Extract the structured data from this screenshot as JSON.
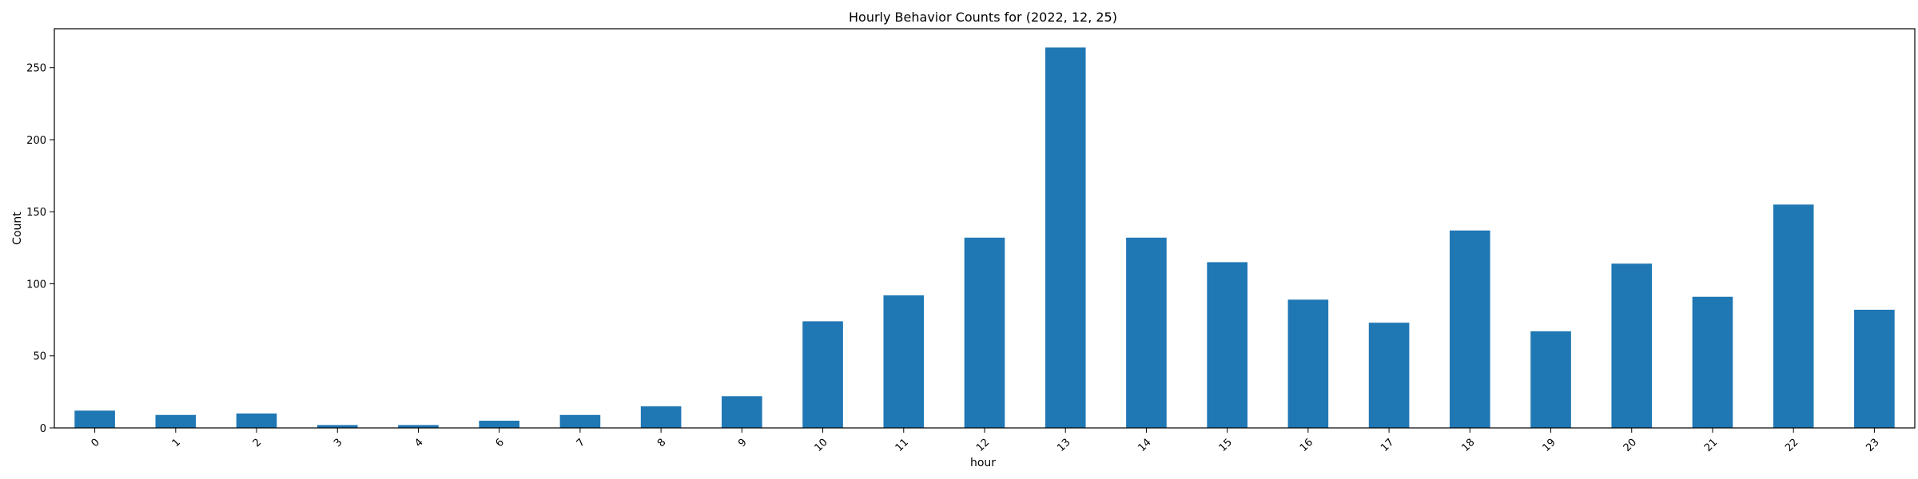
{
  "chart_data": {
    "type": "bar",
    "title": "Hourly Behavior Counts for (2022, 12, 25)",
    "xlabel": "hour",
    "ylabel": "Count",
    "categories": [
      "0",
      "1",
      "2",
      "3",
      "4",
      "6",
      "7",
      "8",
      "9",
      "10",
      "11",
      "12",
      "13",
      "14",
      "15",
      "16",
      "17",
      "18",
      "19",
      "20",
      "21",
      "22",
      "23"
    ],
    "values": [
      12,
      9,
      10,
      2,
      2,
      5,
      9,
      15,
      22,
      74,
      92,
      132,
      264,
      132,
      115,
      89,
      73,
      137,
      67,
      114,
      91,
      155,
      82
    ],
    "ylim": [
      0,
      277
    ],
    "yticks": [
      0,
      50,
      100,
      150,
      200,
      250
    ],
    "bar_color": "#1f77b4",
    "grid": false,
    "legend": "none"
  }
}
